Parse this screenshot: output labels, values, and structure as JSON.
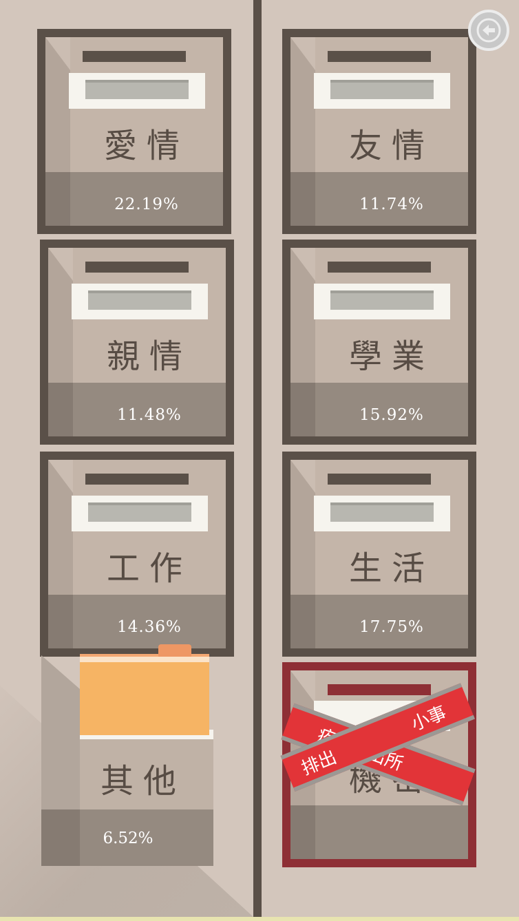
{
  "drawers": [
    {
      "title": "愛情",
      "percent": "22.19%"
    },
    {
      "title": "友情",
      "percent": "11.74%"
    },
    {
      "title": "親情",
      "percent": "11.48%"
    },
    {
      "title": "學業",
      "percent": "15.92%"
    },
    {
      "title": "工作",
      "percent": "14.36%"
    },
    {
      "title": "生活",
      "percent": "17.75%"
    },
    {
      "title": "其他",
      "percent": "6.52%"
    },
    {
      "title": "機密",
      "percent": ""
    }
  ],
  "tape": {
    "text_a": "疚事排出所",
    "text_b": "小事",
    "text_c": "排出"
  },
  "colors": {
    "background": "#d3c6bc",
    "frame": "#5a5048",
    "secret_frame": "#8e2f35",
    "tape": "#e23438",
    "folder": "#f6b464"
  },
  "icons": {
    "back": "back-arrow-icon"
  }
}
